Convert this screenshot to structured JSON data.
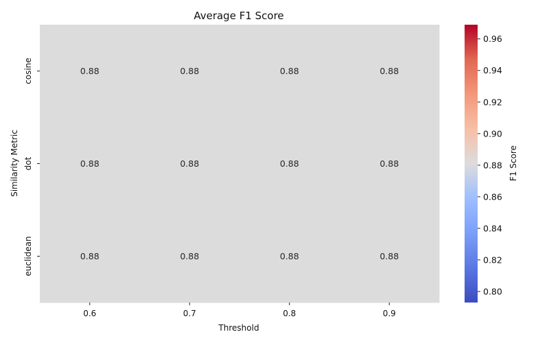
{
  "chart_data": {
    "type": "heatmap",
    "title": "Average F1 Score",
    "xlabel": "Threshold",
    "ylabel": "Similarity Metric",
    "x_categories": [
      "0.6",
      "0.7",
      "0.8",
      "0.9"
    ],
    "y_categories": [
      "cosine",
      "dot",
      "euclidean"
    ],
    "values": [
      [
        0.88,
        0.88,
        0.88,
        0.88
      ],
      [
        0.88,
        0.88,
        0.88,
        0.88
      ],
      [
        0.88,
        0.88,
        0.88,
        0.88
      ]
    ],
    "value_labels": [
      [
        "0.88",
        "0.88",
        "0.88",
        "0.88"
      ],
      [
        "0.88",
        "0.88",
        "0.88",
        "0.88"
      ],
      [
        "0.88",
        "0.88",
        "0.88",
        "0.88"
      ]
    ],
    "colorbar": {
      "label": "F1 Score",
      "colormap": "coolwarm",
      "range": [
        0.793,
        0.969
      ],
      "ticks": [
        "0.80",
        "0.82",
        "0.84",
        "0.86",
        "0.88",
        "0.90",
        "0.92",
        "0.94",
        "0.96"
      ]
    },
    "cell_color": "#dcdcdc",
    "grid": false
  }
}
